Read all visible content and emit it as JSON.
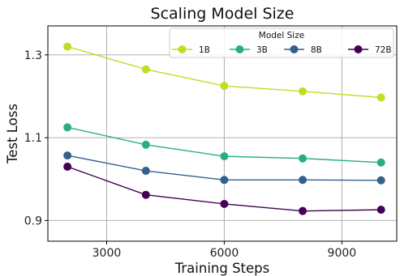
{
  "chart_data": {
    "type": "line",
    "title": "Scaling Model Size",
    "xlabel": "Training Steps",
    "ylabel": "Test Loss",
    "x": [
      2000,
      4000,
      6000,
      8000,
      10000
    ],
    "xlim": [
      1500,
      10400
    ],
    "ylim": [
      0.85,
      1.37
    ],
    "xticks": [
      3000,
      6000,
      9000
    ],
    "xtick_labels": [
      "3000",
      "6000",
      "9000"
    ],
    "yticks": [
      0.9,
      1.1,
      1.3
    ],
    "ytick_labels": [
      "0.9",
      "1.1",
      "1.3"
    ],
    "grid": true,
    "legend": {
      "title": "Model Size",
      "placement": "top-right",
      "columns": 4
    },
    "series": [
      {
        "name": "1B",
        "color": "#bddf26",
        "values": [
          1.32,
          1.265,
          1.225,
          1.212,
          1.197
        ]
      },
      {
        "name": "3B",
        "color": "#29af7f",
        "values": [
          1.125,
          1.083,
          1.055,
          1.05,
          1.04
        ]
      },
      {
        "name": "8B",
        "color": "#355f8d",
        "values": [
          1.057,
          1.02,
          0.998,
          0.998,
          0.997
        ]
      },
      {
        "name": "72B",
        "color": "#440154",
        "values": [
          1.03,
          0.962,
          0.94,
          0.923,
          0.926
        ]
      }
    ]
  }
}
